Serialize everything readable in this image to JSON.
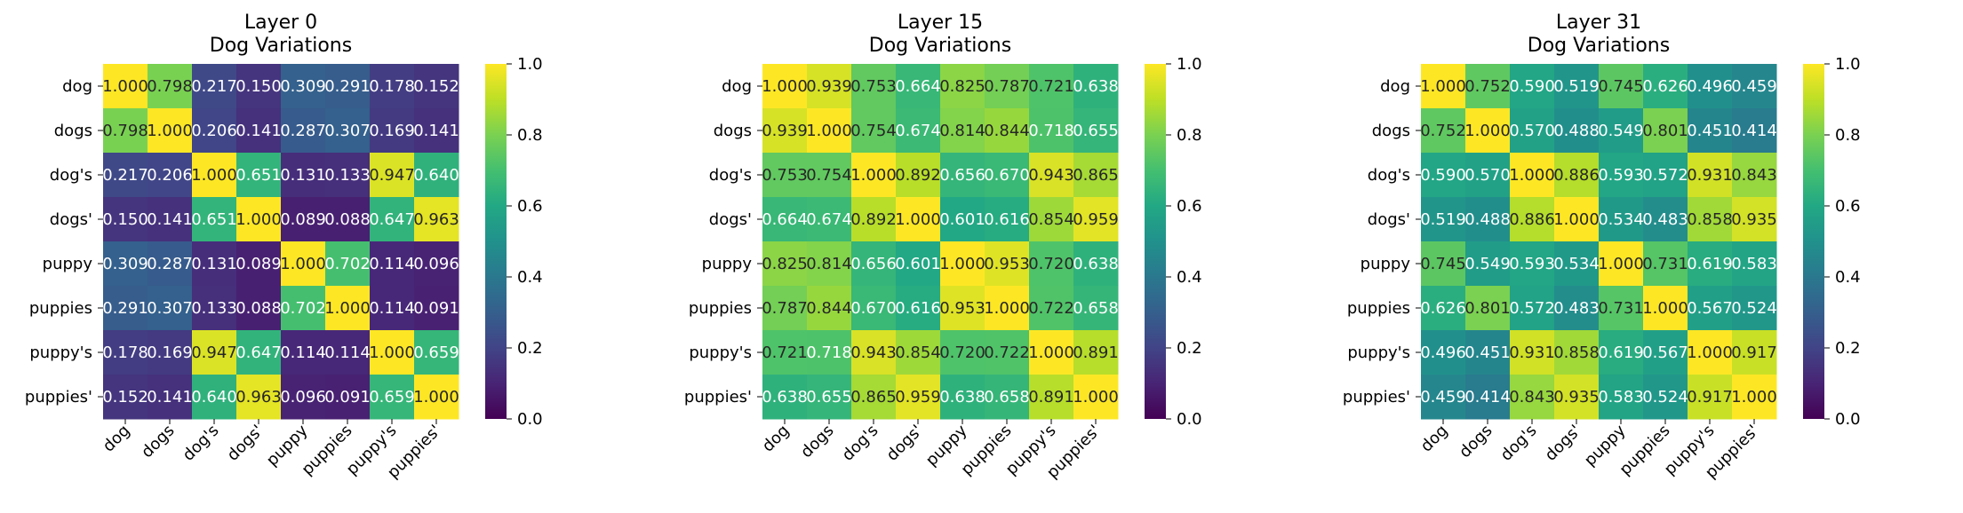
{
  "chart_data": [
    {
      "type": "heatmap",
      "title": "Layer 0\nDog Variations",
      "x_categories": [
        "dog",
        "dogs",
        "dog's",
        "dogs'",
        "puppy",
        "puppies",
        "puppy's",
        "puppies'"
      ],
      "y_categories": [
        "dog",
        "dogs",
        "dog's",
        "dogs'",
        "puppy",
        "puppies",
        "puppy's",
        "puppies'"
      ],
      "values": [
        [
          1.0,
          0.798,
          0.217,
          0.15,
          0.309,
          0.291,
          0.178,
          0.152
        ],
        [
          0.798,
          1.0,
          0.206,
          0.141,
          0.287,
          0.307,
          0.169,
          0.141
        ],
        [
          0.217,
          0.206,
          1.0,
          0.651,
          0.131,
          0.133,
          0.947,
          0.64
        ],
        [
          0.15,
          0.141,
          0.651,
          1.0,
          0.089,
          0.088,
          0.647,
          0.963
        ],
        [
          0.309,
          0.287,
          0.131,
          0.089,
          1.0,
          0.702,
          0.114,
          0.096
        ],
        [
          0.291,
          0.307,
          0.133,
          0.088,
          0.702,
          1.0,
          0.114,
          0.091
        ],
        [
          0.178,
          0.169,
          0.947,
          0.647,
          0.114,
          0.114,
          1.0,
          0.659
        ],
        [
          0.152,
          0.141,
          0.64,
          0.963,
          0.096,
          0.091,
          0.659,
          1.0
        ]
      ],
      "colorbar": {
        "range": [
          0.0,
          1.0
        ],
        "ticks": [
          "0.0",
          "0.2",
          "0.4",
          "0.6",
          "0.8",
          "1.0"
        ]
      },
      "colormap": "viridis"
    },
    {
      "type": "heatmap",
      "title": "Layer 15\nDog Variations",
      "x_categories": [
        "dog",
        "dogs",
        "dog's",
        "dogs'",
        "puppy",
        "puppies",
        "puppy's",
        "puppies'"
      ],
      "y_categories": [
        "dog",
        "dogs",
        "dog's",
        "dogs'",
        "puppy",
        "puppies",
        "puppy's",
        "puppies'"
      ],
      "values": [
        [
          1.0,
          0.939,
          0.753,
          0.664,
          0.825,
          0.787,
          0.721,
          0.638
        ],
        [
          0.939,
          1.0,
          0.754,
          0.674,
          0.814,
          0.844,
          0.718,
          0.655
        ],
        [
          0.753,
          0.754,
          1.0,
          0.892,
          0.656,
          0.67,
          0.943,
          0.865
        ],
        [
          0.664,
          0.674,
          0.892,
          1.0,
          0.601,
          0.616,
          0.854,
          0.959
        ],
        [
          0.825,
          0.814,
          0.656,
          0.601,
          1.0,
          0.953,
          0.72,
          0.638
        ],
        [
          0.787,
          0.844,
          0.67,
          0.616,
          0.953,
          1.0,
          0.722,
          0.658
        ],
        [
          0.721,
          0.718,
          0.943,
          0.854,
          0.72,
          0.722,
          1.0,
          0.891
        ],
        [
          0.638,
          0.655,
          0.865,
          0.959,
          0.638,
          0.658,
          0.891,
          1.0
        ]
      ],
      "colorbar": {
        "range": [
          0.0,
          1.0
        ],
        "ticks": [
          "0.0",
          "0.2",
          "0.4",
          "0.6",
          "0.8",
          "1.0"
        ]
      },
      "colormap": "viridis"
    },
    {
      "type": "heatmap",
      "title": "Layer 31\nDog Variations",
      "x_categories": [
        "dog",
        "dogs",
        "dog's",
        "dogs'",
        "puppy",
        "puppies",
        "puppy's",
        "puppies'"
      ],
      "y_categories": [
        "dog",
        "dogs",
        "dog's",
        "dogs'",
        "puppy",
        "puppies",
        "puppy's",
        "puppies'"
      ],
      "values": [
        [
          1.0,
          0.752,
          0.59,
          0.519,
          0.745,
          0.626,
          0.496,
          0.459
        ],
        [
          0.752,
          1.0,
          0.57,
          0.488,
          0.549,
          0.801,
          0.451,
          0.414
        ],
        [
          0.59,
          0.57,
          1.0,
          0.886,
          0.593,
          0.572,
          0.931,
          0.843
        ],
        [
          0.519,
          0.488,
          0.886,
          1.0,
          0.534,
          0.483,
          0.858,
          0.935
        ],
        [
          0.745,
          0.549,
          0.593,
          0.534,
          1.0,
          0.731,
          0.619,
          0.583
        ],
        [
          0.626,
          0.801,
          0.572,
          0.483,
          0.731,
          1.0,
          0.567,
          0.524
        ],
        [
          0.496,
          0.451,
          0.931,
          0.858,
          0.619,
          0.567,
          1.0,
          0.917
        ],
        [
          0.459,
          0.414,
          0.843,
          0.935,
          0.583,
          0.524,
          0.917,
          1.0
        ]
      ],
      "colorbar": {
        "range": [
          0.0,
          1.0
        ],
        "ticks": [
          "0.0",
          "0.2",
          "0.4",
          "0.6",
          "0.8",
          "1.0"
        ]
      },
      "colormap": "viridis"
    }
  ]
}
